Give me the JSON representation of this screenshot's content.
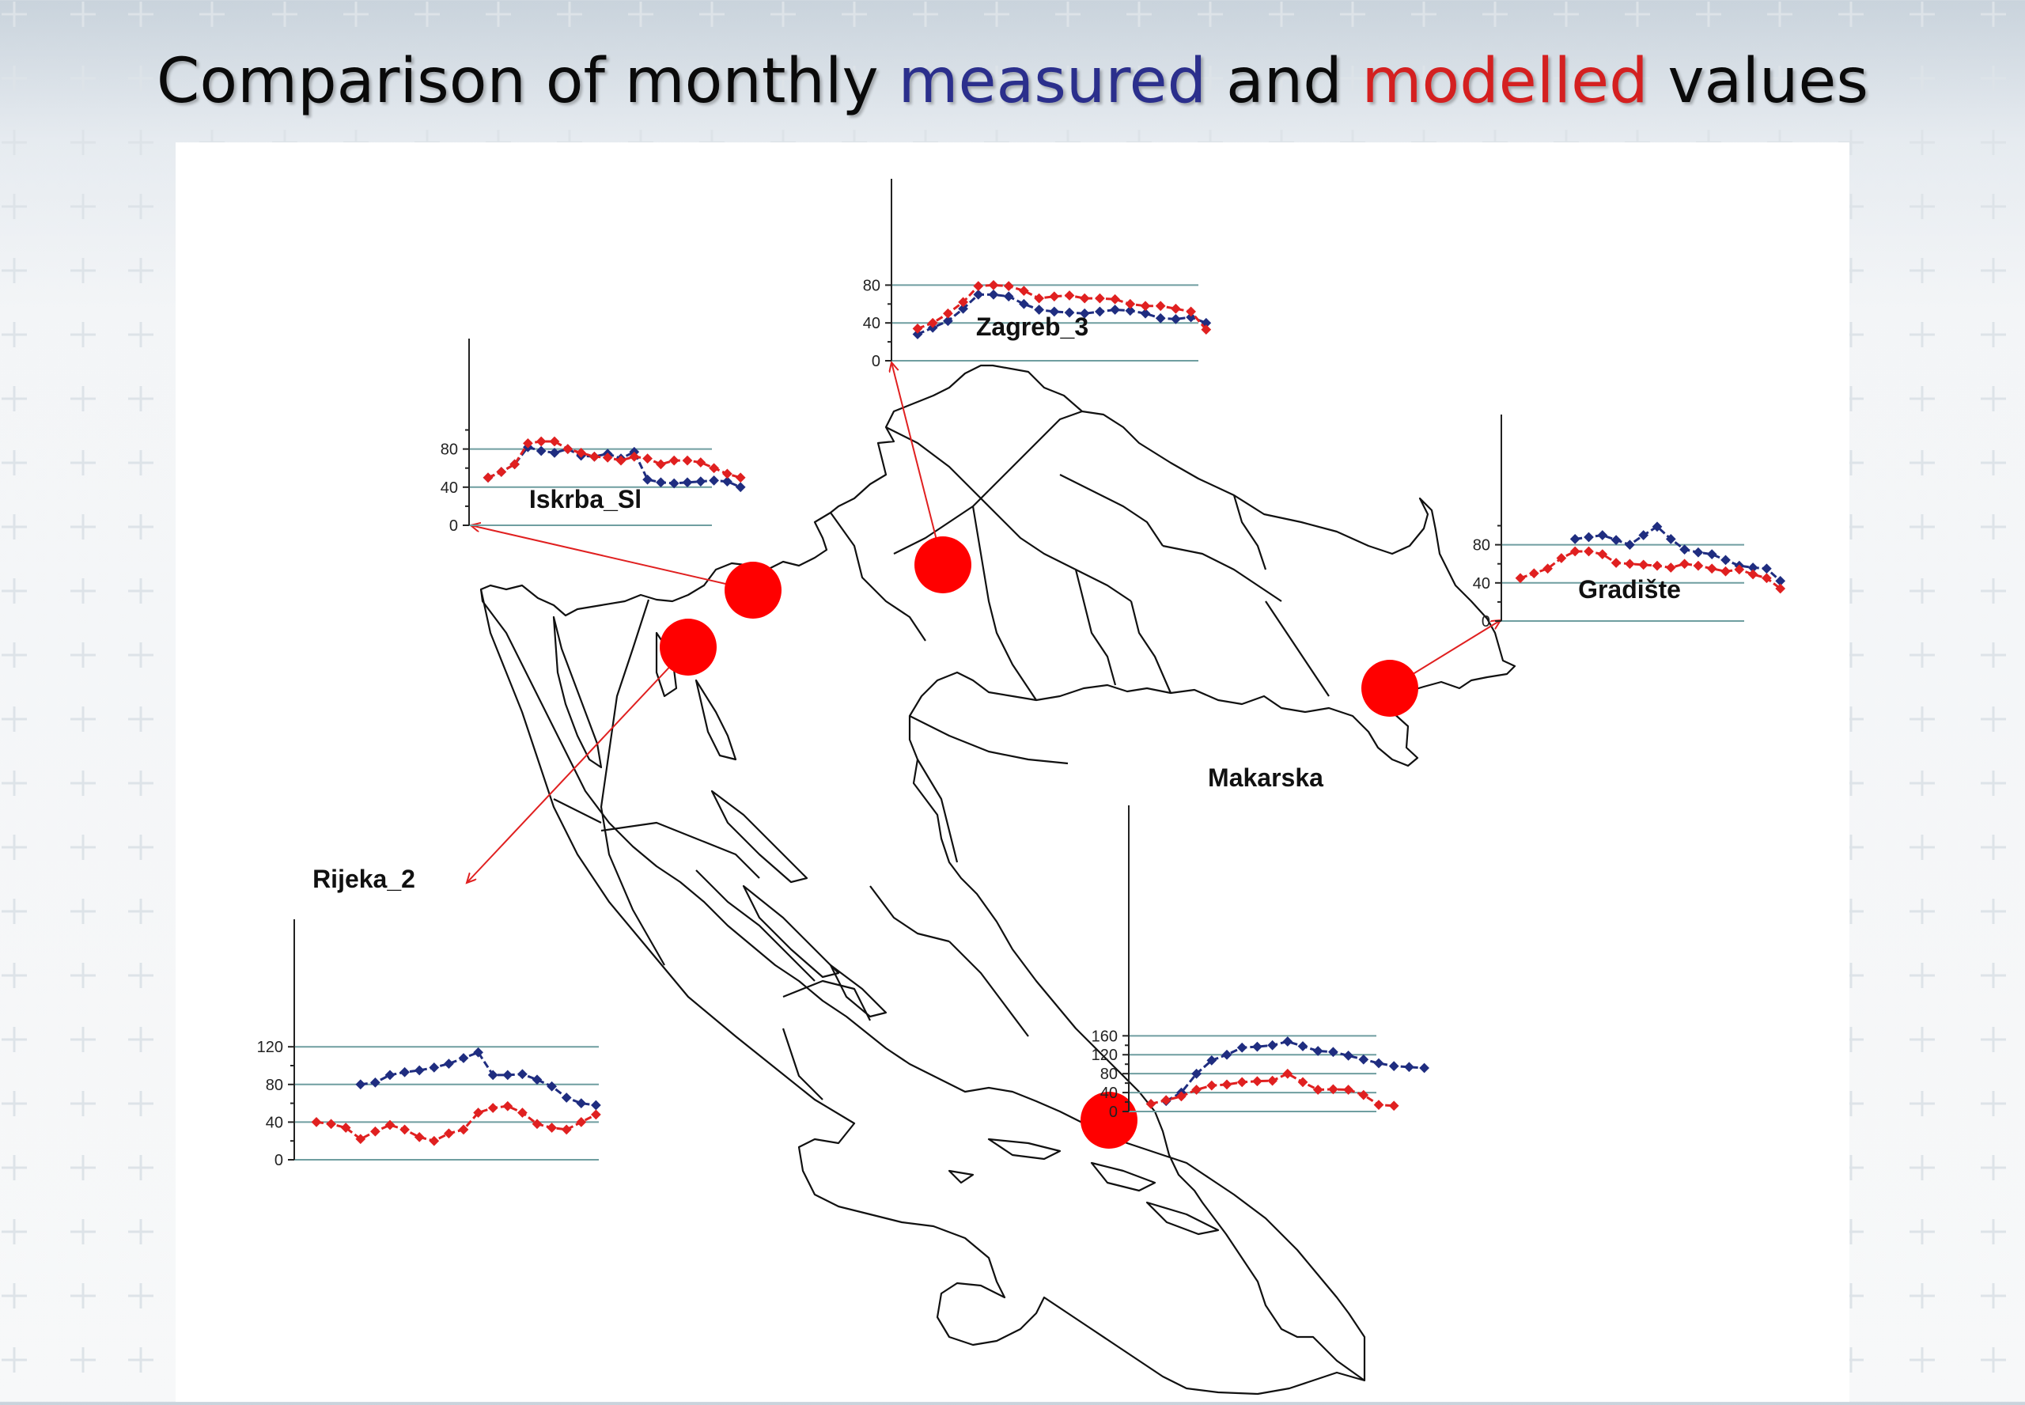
{
  "title": {
    "prefix": "Comparison of monthly ",
    "measured": "measured",
    "middle": " and ",
    "modelled": "modelled",
    "suffix": " values"
  },
  "colors": {
    "measured": "#1f2d80",
    "modelled": "#e02020",
    "grid": "#6f9ea0",
    "station_marker": "#ff0000",
    "arrow": "#e02020"
  },
  "chart_data": [
    {
      "type": "line",
      "station": "Zagreb_3",
      "x": [
        1,
        2,
        3,
        4,
        5,
        6,
        7,
        8,
        9,
        10,
        11,
        12,
        13,
        14,
        15,
        16,
        17,
        18,
        19,
        20
      ],
      "ylim": [
        0,
        90
      ],
      "yticks": [
        0,
        40,
        80
      ],
      "series": [
        {
          "key": "measured",
          "values": [
            28,
            35,
            42,
            55,
            70,
            70,
            68,
            60,
            54,
            52,
            51,
            50,
            52,
            54,
            53,
            50,
            45,
            44,
            46,
            40
          ]
        },
        {
          "key": "modelled",
          "values": [
            34,
            40,
            50,
            62,
            79,
            80,
            79,
            74,
            66,
            68,
            69,
            66,
            66,
            65,
            60,
            58,
            58,
            55,
            52,
            33
          ]
        }
      ]
    },
    {
      "type": "line",
      "station": "Iskrba_Sl",
      "x": [
        1,
        2,
        3,
        4,
        5,
        6,
        7,
        8,
        9,
        10,
        11,
        12,
        13,
        14,
        15,
        16,
        17,
        18,
        19,
        20
      ],
      "ylim": [
        0,
        100
      ],
      "yticks": [
        0,
        40,
        80
      ],
      "series": [
        {
          "key": "measured",
          "values": [
            50,
            56,
            64,
            82,
            78,
            76,
            80,
            73,
            72,
            75,
            70,
            77,
            48,
            45,
            44,
            45,
            46,
            47,
            46,
            40
          ]
        },
        {
          "key": "modelled",
          "values": [
            50,
            56,
            64,
            86,
            88,
            88,
            80,
            76,
            72,
            71,
            68,
            72,
            70,
            64,
            68,
            68,
            66,
            60,
            54,
            50
          ]
        }
      ]
    },
    {
      "type": "line",
      "station": "Gradište",
      "x": [
        1,
        2,
        3,
        4,
        5,
        6,
        7,
        8,
        9,
        10,
        11,
        12,
        13,
        14,
        15,
        16,
        17,
        18,
        19,
        20
      ],
      "ylim": [
        0,
        105
      ],
      "yticks": [
        0,
        40,
        80
      ],
      "series": [
        {
          "key": "measured",
          "values": [
            null,
            null,
            null,
            null,
            86,
            88,
            90,
            85,
            80,
            90,
            99,
            86,
            75,
            72,
            70,
            64,
            58,
            56,
            55,
            42
          ]
        },
        {
          "key": "modelled",
          "values": [
            45,
            50,
            55,
            66,
            73,
            73,
            70,
            61,
            60,
            59,
            58,
            56,
            60,
            58,
            55,
            52,
            54,
            49,
            45,
            34
          ]
        }
      ]
    },
    {
      "type": "line",
      "station": "Rijeka_2",
      "x": [
        1,
        2,
        3,
        4,
        5,
        6,
        7,
        8,
        9,
        10,
        11,
        12,
        13,
        14,
        15,
        16,
        17,
        18,
        19,
        20
      ],
      "ylim": [
        0,
        130
      ],
      "yticks": [
        0,
        40,
        80,
        120
      ],
      "series": [
        {
          "key": "measured",
          "values": [
            null,
            null,
            null,
            80,
            82,
            90,
            93,
            95,
            98,
            102,
            108,
            114,
            90,
            90,
            91,
            85,
            78,
            66,
            60,
            58
          ]
        },
        {
          "key": "modelled",
          "values": [
            40,
            38,
            34,
            22,
            30,
            37,
            32,
            24,
            20,
            28,
            32,
            50,
            55,
            57,
            50,
            38,
            34,
            32,
            40,
            48
          ]
        }
      ]
    },
    {
      "type": "line",
      "station": "Makarska",
      "x": [
        1,
        2,
        3,
        4,
        5,
        6,
        7,
        8,
        9,
        10,
        11,
        12,
        13,
        14,
        15,
        16,
        17,
        18,
        19,
        20
      ],
      "ylim": [
        0,
        170
      ],
      "yticks": [
        0,
        40,
        80,
        120,
        160
      ],
      "series": [
        {
          "key": "measured",
          "values": [
            null,
            22,
            40,
            80,
            108,
            120,
            135,
            137,
            140,
            148,
            138,
            128,
            126,
            118,
            110,
            102,
            96,
            94,
            92,
            null
          ]
        },
        {
          "key": "modelled",
          "values": [
            16,
            24,
            32,
            46,
            55,
            57,
            62,
            64,
            65,
            80,
            62,
            46,
            47,
            46,
            35,
            14,
            12,
            null,
            null,
            null
          ]
        }
      ]
    }
  ]
}
